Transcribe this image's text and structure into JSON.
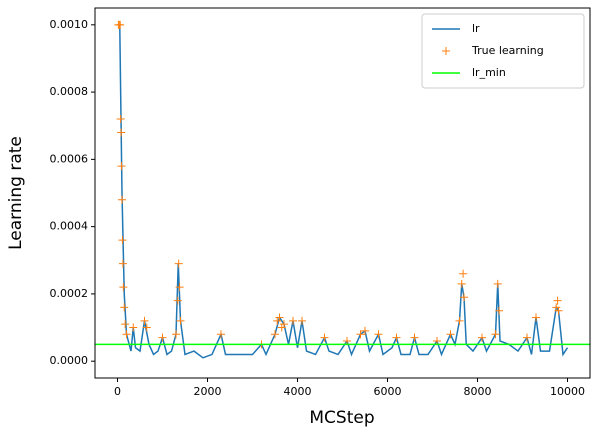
{
  "chart_data": {
    "type": "line",
    "xlabel": "MCStep",
    "ylabel": "Learning rate",
    "xlim": [
      -500,
      10500
    ],
    "ylim": [
      -5e-05,
      0.00105
    ],
    "xticks": [
      0,
      2000,
      4000,
      6000,
      8000,
      10000
    ],
    "yticks": [
      {
        "value": 0,
        "label": "0.0000"
      },
      {
        "value": 0.0002,
        "label": "0.0002"
      },
      {
        "value": 0.0004,
        "label": "0.0004"
      },
      {
        "value": 0.0006,
        "label": "0.0006"
      },
      {
        "value": 0.0008,
        "label": "0.0008"
      },
      {
        "value": 0.001,
        "label": "0.0010"
      }
    ],
    "legend": "upper right",
    "series": [
      {
        "name": "lr",
        "color": "#1f77b4",
        "style": "line",
        "x": [
          0,
          50,
          100,
          150,
          200,
          300,
          350,
          400,
          500,
          600,
          700,
          800,
          900,
          1000,
          1100,
          1200,
          1300,
          1350,
          1400,
          1500,
          1700,
          1900,
          2100,
          2300,
          2400,
          2700,
          3000,
          3200,
          3300,
          3500,
          3600,
          3700,
          3800,
          3900,
          4000,
          4100,
          4200,
          4400,
          4600,
          4700,
          4900,
          5100,
          5200,
          5400,
          5500,
          5600,
          5800,
          5900,
          6100,
          6200,
          6300,
          6500,
          6600,
          6700,
          6900,
          7100,
          7200,
          7400,
          7500,
          7600,
          7650,
          7700,
          7750,
          7900,
          8100,
          8200,
          8400,
          8450,
          8500,
          8700,
          8900,
          9100,
          9200,
          9300,
          9400,
          9600,
          9750,
          9800,
          9900,
          10000
        ],
        "values": [
          0.001,
          0.001,
          0.0005,
          0.0002,
          8e-05,
          3e-05,
          0.0001,
          4e-05,
          3e-05,
          0.00012,
          5e-05,
          2e-05,
          3e-05,
          7e-05,
          2e-05,
          3e-05,
          8e-05,
          0.00029,
          0.00012,
          2e-05,
          3e-05,
          1e-05,
          2e-05,
          8e-05,
          2e-05,
          2e-05,
          2e-05,
          5e-05,
          2e-05,
          8e-05,
          0.00013,
          0.00011,
          5e-05,
          0.00012,
          4e-05,
          0.00012,
          3e-05,
          2e-05,
          7e-05,
          3e-05,
          2e-05,
          6e-05,
          2e-05,
          8e-05,
          9e-05,
          3e-05,
          8e-05,
          2e-05,
          4e-05,
          7e-05,
          2e-05,
          2e-05,
          7e-05,
          2e-05,
          2e-05,
          6e-05,
          2e-05,
          8e-05,
          5e-05,
          0.00012,
          0.00023,
          0.00019,
          5e-05,
          3e-05,
          7e-05,
          3e-05,
          8e-05,
          0.00023,
          6e-05,
          5e-05,
          3e-05,
          7e-05,
          2e-05,
          0.00013,
          3e-05,
          3e-05,
          0.00016,
          0.00015,
          2e-05,
          4e-05
        ]
      },
      {
        "name": "True learning",
        "color": "#ff7f0e",
        "style": "marker",
        "marker": "+",
        "x": [
          20,
          40,
          60,
          70,
          80,
          90,
          100,
          110,
          120,
          130,
          150,
          170,
          200,
          350,
          600,
          650,
          1000,
          1300,
          1340,
          1360,
          1380,
          1400,
          2300,
          3200,
          3500,
          3550,
          3600,
          3650,
          3700,
          3900,
          4100,
          4600,
          5100,
          5400,
          5500,
          5800,
          6200,
          6600,
          7100,
          7400,
          7600,
          7650,
          7680,
          7700,
          8100,
          8400,
          8450,
          8480,
          9100,
          9300,
          9750,
          9780,
          9800
        ],
        "values": [
          0.001,
          0.001,
          0.001,
          0.00072,
          0.00068,
          0.00058,
          0.00048,
          0.00036,
          0.00029,
          0.00022,
          0.00016,
          0.00011,
          8e-05,
          0.0001,
          0.00012,
          0.0001,
          7e-05,
          8e-05,
          0.00018,
          0.00029,
          0.00022,
          0.00012,
          8e-05,
          5e-05,
          8e-05,
          0.00012,
          0.00013,
          0.0001,
          0.00011,
          0.00012,
          0.00012,
          7e-05,
          6e-05,
          8e-05,
          9e-05,
          8e-05,
          7e-05,
          7e-05,
          6e-05,
          8e-05,
          0.00012,
          0.00023,
          0.00026,
          0.00019,
          7e-05,
          8e-05,
          0.00023,
          0.00015,
          7e-05,
          0.00013,
          0.00016,
          0.00018,
          0.00015
        ]
      },
      {
        "name": "lr_min",
        "color": "#00ff00",
        "style": "hline",
        "values": [
          5e-05
        ]
      }
    ]
  }
}
